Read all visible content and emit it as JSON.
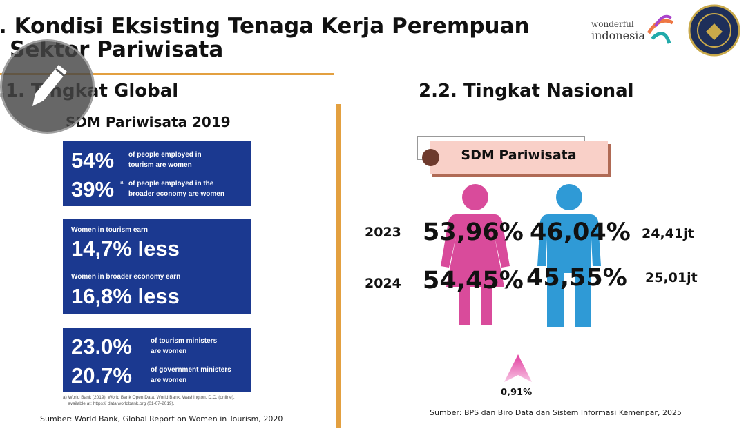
{
  "header": {
    "title_line1": ". Kondisi Eksisting Tenaga Kerja Perempuan",
    "title_line2": "Sektor Pariwisata",
    "logo_text_1": "wonderful",
    "logo_text_2": "indonesia"
  },
  "global": {
    "heading": ".1. Tingkat Global",
    "subheading": "SDM Pariwisata 2019",
    "box1": {
      "v1": "54%",
      "t1a": "of people employed in",
      "t1b": "tourism are women",
      "v2": "39%",
      "sup": "a",
      "t2a": "of people employed in the",
      "t2b": "broader economy are women"
    },
    "box2": {
      "l1": "Women in tourism earn",
      "v1": "14,7% less",
      "l2": "Women in broader economy earn",
      "v2": "16,8% less"
    },
    "box3": {
      "v1": "23.0%",
      "t1a": "of tourism ministers",
      "t1b": "are women",
      "v2": "20.7%",
      "t2a": "of government ministers",
      "t2b": "are women"
    },
    "footnote_1": "a)  World Bank (2019), World Bank Open Data, World Bank, Washington, D.C. (online),",
    "footnote_2": "available at: https:// data.worldbank.org (01-07-2019).",
    "source": "Sumber: World Bank, Global Report on Women in Tourism, 2020"
  },
  "national": {
    "heading": "2.2. Tingkat Nasional",
    "label": "SDM Pariwisata",
    "rows": [
      {
        "year": "2023",
        "female": "53,96%",
        "male": "46,04%",
        "total": "24,41jt"
      },
      {
        "year": "2024",
        "female": "54,45%",
        "male": "45,55%",
        "total": "25,01jt"
      }
    ],
    "change": "0,91%",
    "source": "Sumber: BPS dan Biro Data dan Sistem Informasi Kemenpar, 2025"
  },
  "colors": {
    "accent": "#e3a040",
    "box_blue": "#1b3990",
    "female": "#d94b9b",
    "male": "#2f9ad6",
    "label_bg": "#f9d0c8"
  }
}
